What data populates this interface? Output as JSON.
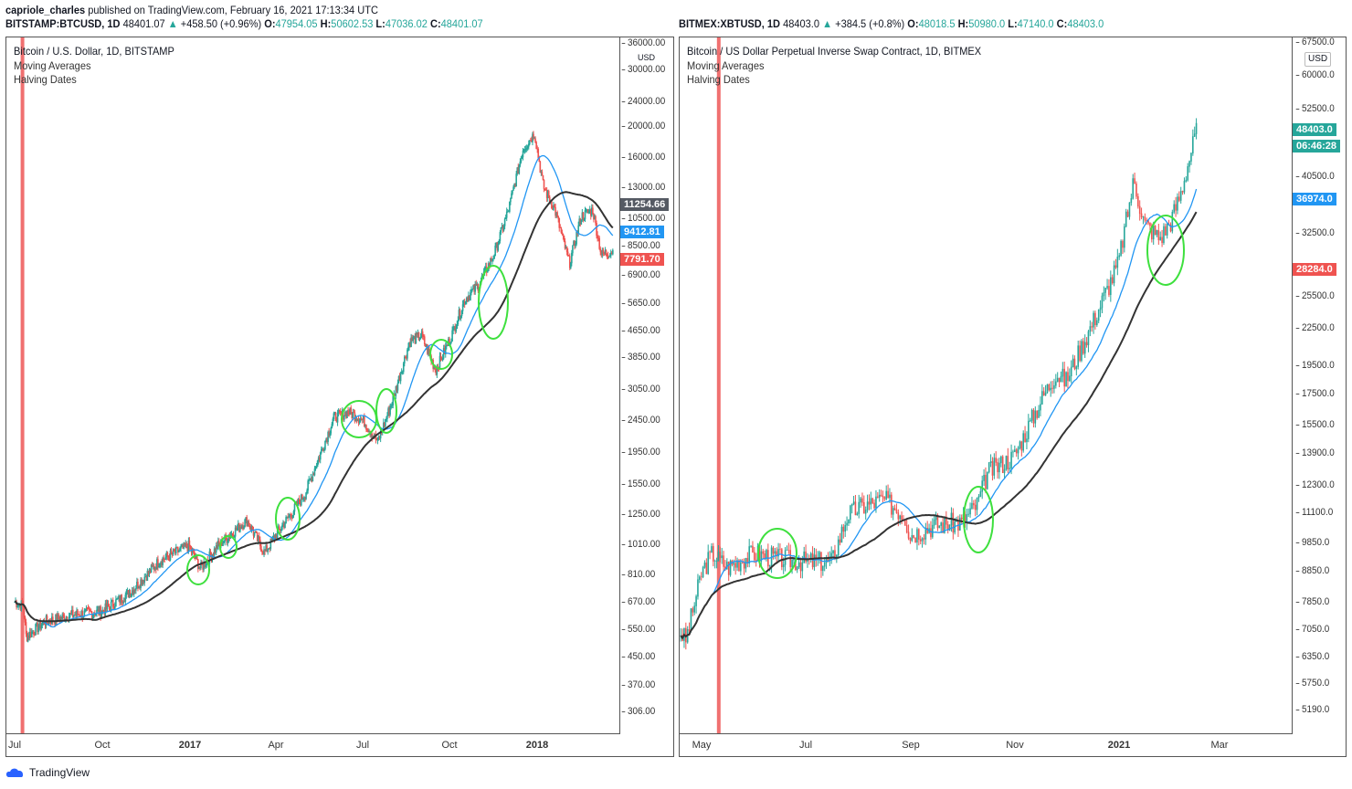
{
  "header": {
    "publisher": "capriole_charles",
    "published": "published on TradingView.com, February 16, 2021 17:13:34 UTC"
  },
  "left": {
    "symbol": "BITSTAMP:BTCUSD, 1D",
    "last": "48401.07",
    "arrow": "▲",
    "change": "+458.50 (+0.96%)",
    "o_label": "O:",
    "o": "47954.05",
    "h_label": "H:",
    "h": "50602.53",
    "l_label": "L:",
    "l": "47036.02",
    "c_label": "C:",
    "c": "48401.07",
    "legend": [
      "Bitcoin / U.S. Dollar, 1D, BITSTAMP",
      "Moving Averages",
      "Halving Dates"
    ],
    "currency": "USD",
    "ticks": [
      "36000.00",
      "30000.00",
      "24000.00",
      "20000.00",
      "16000.00",
      "13000.00",
      "10500.00",
      "8500.00",
      "6900.00",
      "5650.00",
      "4650.00",
      "3850.00",
      "3050.00",
      "2450.00",
      "1950.00",
      "1550.00",
      "1250.00",
      "1010.00",
      "810.00",
      "670.00",
      "550.00",
      "450.00",
      "370.00",
      "306.00"
    ],
    "badges": [
      {
        "text": "11254.66",
        "color": "#555a63"
      },
      {
        "text": "9412.81",
        "color": "#2196f3"
      },
      {
        "text": "7791.70",
        "color": "#ef5350"
      }
    ],
    "xticks": [
      "Jul",
      "Oct",
      "2017",
      "Apr",
      "Jul",
      "Oct",
      "2018"
    ],
    "price_path": [
      [
        0,
        670
      ],
      [
        0.3,
        650
      ],
      [
        0.4,
        520
      ],
      [
        1,
        580
      ],
      [
        2,
        610
      ],
      [
        3,
        625
      ],
      [
        4,
        720
      ],
      [
        5,
        900
      ],
      [
        6,
        1000
      ],
      [
        6.4,
        850
      ],
      [
        7,
        1000
      ],
      [
        8,
        1200
      ],
      [
        8.6,
        950
      ],
      [
        9,
        1080
      ],
      [
        10,
        1450
      ],
      [
        11,
        2500
      ],
      [
        11.5,
        2600
      ],
      [
        12,
        2450
      ],
      [
        12.5,
        2100
      ],
      [
        13,
        2800
      ],
      [
        13.6,
        4300
      ],
      [
        14,
        4500
      ],
      [
        14.5,
        3500
      ],
      [
        15,
        4400
      ],
      [
        15.5,
        5800
      ],
      [
        16,
        6500
      ],
      [
        16.5,
        8000
      ],
      [
        17,
        11000
      ],
      [
        17.5,
        17000
      ],
      [
        17.9,
        19000
      ],
      [
        18.2,
        13000
      ],
      [
        18.6,
        11000
      ],
      [
        19.1,
        7500
      ],
      [
        19.5,
        10500
      ],
      [
        19.9,
        11000
      ],
      [
        20.2,
        8000
      ],
      [
        20.6,
        8200
      ]
    ]
  },
  "right": {
    "symbol": "BITMEX:XBTUSD, 1D",
    "last": "48403.0",
    "arrow": "▲",
    "change": "+384.5 (+0.8%)",
    "o_label": "O:",
    "o": "48018.5",
    "h_label": "H:",
    "h": "50980.0",
    "l_label": "L:",
    "l": "47140.0",
    "c_label": "C:",
    "c": "48403.0",
    "legend": [
      "Bitcoin / US Dollar Perpetual Inverse Swap Contract, 1D, BITMEX",
      "Moving Averages",
      "Halving Dates"
    ],
    "currency": "USD",
    "ticks": [
      "67500.0",
      "60000.0",
      "52500.0",
      "40500.0",
      "32500.0",
      "25500.0",
      "22500.0",
      "19500.0",
      "17500.0",
      "15500.0",
      "13900.0",
      "12300.0",
      "11100.0",
      "9850.0",
      "8850.0",
      "7850.0",
      "7050.0",
      "6350.0",
      "5750.0",
      "5190.0"
    ],
    "badges": [
      {
        "text": "48403.0",
        "color": "#26a69a"
      },
      {
        "text": "06:46:28",
        "color": "#26a69a"
      },
      {
        "text": "36974.0",
        "color": "#2196f3"
      },
      {
        "text": "28284.0",
        "color": "#ef5350"
      }
    ],
    "xticks": [
      "May",
      "Jul",
      "Sep",
      "Nov",
      "2021",
      "Mar"
    ],
    "price_path": [
      [
        -0.4,
        7000
      ],
      [
        -0.3,
        6800
      ],
      [
        0,
        8800
      ],
      [
        0.2,
        9500
      ],
      [
        0.5,
        9000
      ],
      [
        1,
        9500
      ],
      [
        1.5,
        9300
      ],
      [
        2,
        9200
      ],
      [
        2.5,
        9200
      ],
      [
        2.8,
        11000
      ],
      [
        3,
        11300
      ],
      [
        3.5,
        11700
      ],
      [
        3.9,
        11000
      ],
      [
        4,
        10200
      ],
      [
        4.5,
        10600
      ],
      [
        5,
        10700
      ],
      [
        5.3,
        11500
      ],
      [
        5.5,
        13000
      ],
      [
        6,
        13800
      ],
      [
        6.5,
        17000
      ],
      [
        6.8,
        19000
      ],
      [
        7,
        18500
      ],
      [
        7.5,
        23000
      ],
      [
        8,
        29000
      ],
      [
        8.3,
        40000
      ],
      [
        8.5,
        34000
      ],
      [
        8.8,
        32000
      ],
      [
        9,
        34000
      ],
      [
        9.2,
        38000
      ],
      [
        9.5,
        48400
      ]
    ]
  },
  "footer": {
    "brand": "TradingView"
  }
}
